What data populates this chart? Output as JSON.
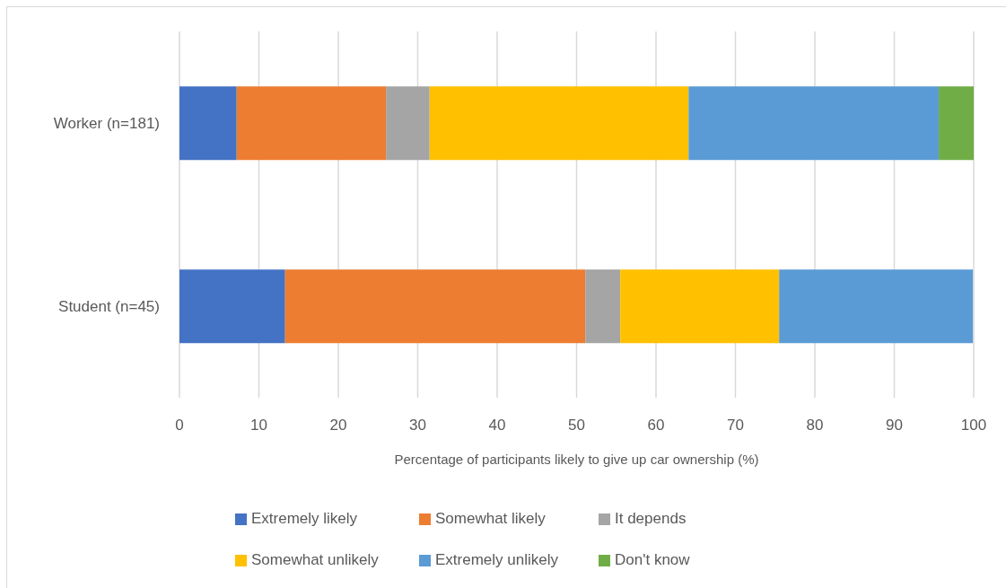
{
  "chart_data": {
    "type": "bar",
    "orientation": "horizontal",
    "stacked": true,
    "xlabel": "Percentage of participants likely to give up car ownership (%)",
    "categories": [
      "Worker (n=181)",
      "Student (n=45)"
    ],
    "series": [
      {
        "name": "Extremely likely",
        "color": "#4472c4",
        "values": [
          7.2,
          13.3
        ]
      },
      {
        "name": "Somewhat likely",
        "color": "#ed7d31",
        "values": [
          18.8,
          37.8
        ]
      },
      {
        "name": "It depends",
        "color": "#a5a5a5",
        "values": [
          5.5,
          4.4
        ]
      },
      {
        "name": "Somewhat unlikely",
        "color": "#ffc000",
        "values": [
          32.6,
          20.0
        ]
      },
      {
        "name": "Extremely unlikely",
        "color": "#5b9bd5",
        "values": [
          31.5,
          24.4
        ]
      },
      {
        "name": "Don't know",
        "color": "#70ad47",
        "values": [
          4.4,
          null
        ]
      }
    ],
    "xlim": [
      0,
      100
    ],
    "xticks": [
      0,
      10,
      20,
      30,
      40,
      50,
      60,
      70,
      80,
      90,
      100
    ],
    "grid": "x",
    "legend": "bottom"
  }
}
